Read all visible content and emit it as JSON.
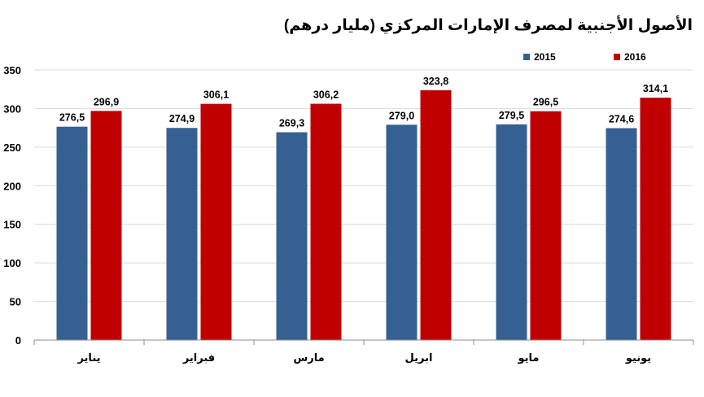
{
  "chart_data": {
    "type": "bar",
    "title": "الأصول الأجنبية لمصرف الإمارات المركزي (مليار درهم)",
    "categories": [
      "يناير",
      "فبراير",
      "مارس",
      "ابريل",
      "مايو",
      "يونيو"
    ],
    "series": [
      {
        "name": "2015",
        "color": "#366092",
        "values": [
          276.5,
          274.9,
          269.3,
          279.0,
          279.5,
          274.6
        ],
        "labels": [
          "276,5",
          "274,9",
          "269,3",
          "279,0",
          "279,5",
          "274,6"
        ]
      },
      {
        "name": "2016",
        "color": "#C00000",
        "values": [
          296.9,
          306.1,
          306.2,
          323.8,
          296.5,
          314.1
        ],
        "labels": [
          "296,9",
          "306,1",
          "306,2",
          "323,8",
          "296,5",
          "314,1"
        ]
      }
    ],
    "ylim": [
      0,
      350
    ],
    "yticks": [
      0,
      50,
      100,
      150,
      200,
      250,
      300,
      350
    ],
    "grid": true,
    "legend": "top-right"
  }
}
